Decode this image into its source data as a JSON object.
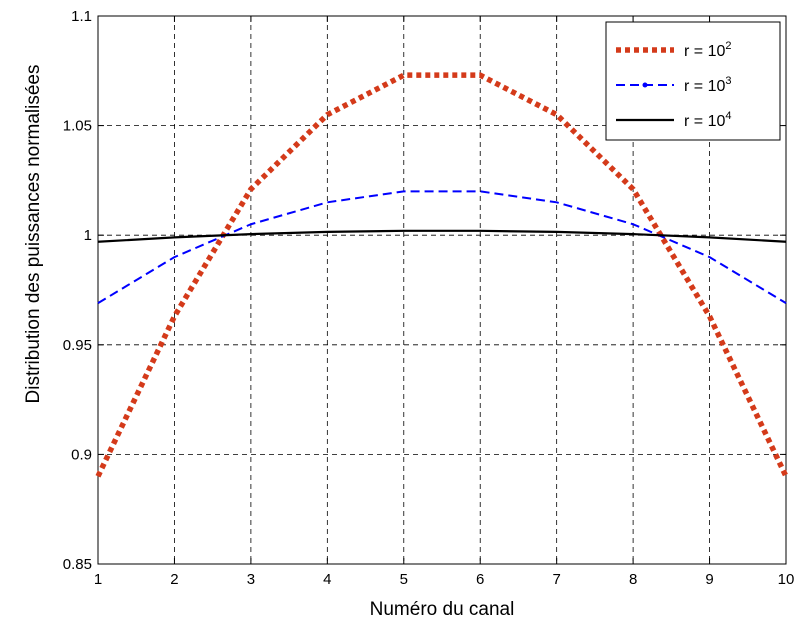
{
  "chart_data": {
    "type": "line",
    "xlabel": "Numéro du canal",
    "ylabel": "Distribution des puissances normalisées",
    "xlim": [
      1,
      10
    ],
    "ylim": [
      0.85,
      1.1
    ],
    "x_ticks": [
      "1",
      "2",
      "3",
      "4",
      "5",
      "6",
      "7",
      "8",
      "9",
      "10"
    ],
    "y_ticks": [
      "0.85",
      "0.9",
      "0.95",
      "1",
      "1.05",
      "1.1"
    ],
    "grid": true,
    "legend_position": "top-right",
    "x": [
      1,
      2,
      3,
      4,
      5,
      6,
      7,
      8,
      9,
      10
    ],
    "series": [
      {
        "name": "r = 10",
        "exponent": "2",
        "color": "#d43a1a",
        "style": "dotted-thick",
        "values": [
          0.89,
          0.963,
          1.021,
          1.055,
          1.073,
          1.073,
          1.055,
          1.021,
          0.963,
          0.89
        ]
      },
      {
        "name": "r = 10",
        "exponent": "3",
        "color": "#0000ff",
        "style": "dashed",
        "values": [
          0.969,
          0.99,
          1.005,
          1.015,
          1.02,
          1.02,
          1.015,
          1.005,
          0.99,
          0.969
        ]
      },
      {
        "name": "r = 10",
        "exponent": "4",
        "color": "#000000",
        "style": "solid",
        "values": [
          0.997,
          0.999,
          1.0005,
          1.0015,
          1.002,
          1.002,
          1.0015,
          1.0005,
          0.999,
          0.997
        ]
      }
    ]
  }
}
